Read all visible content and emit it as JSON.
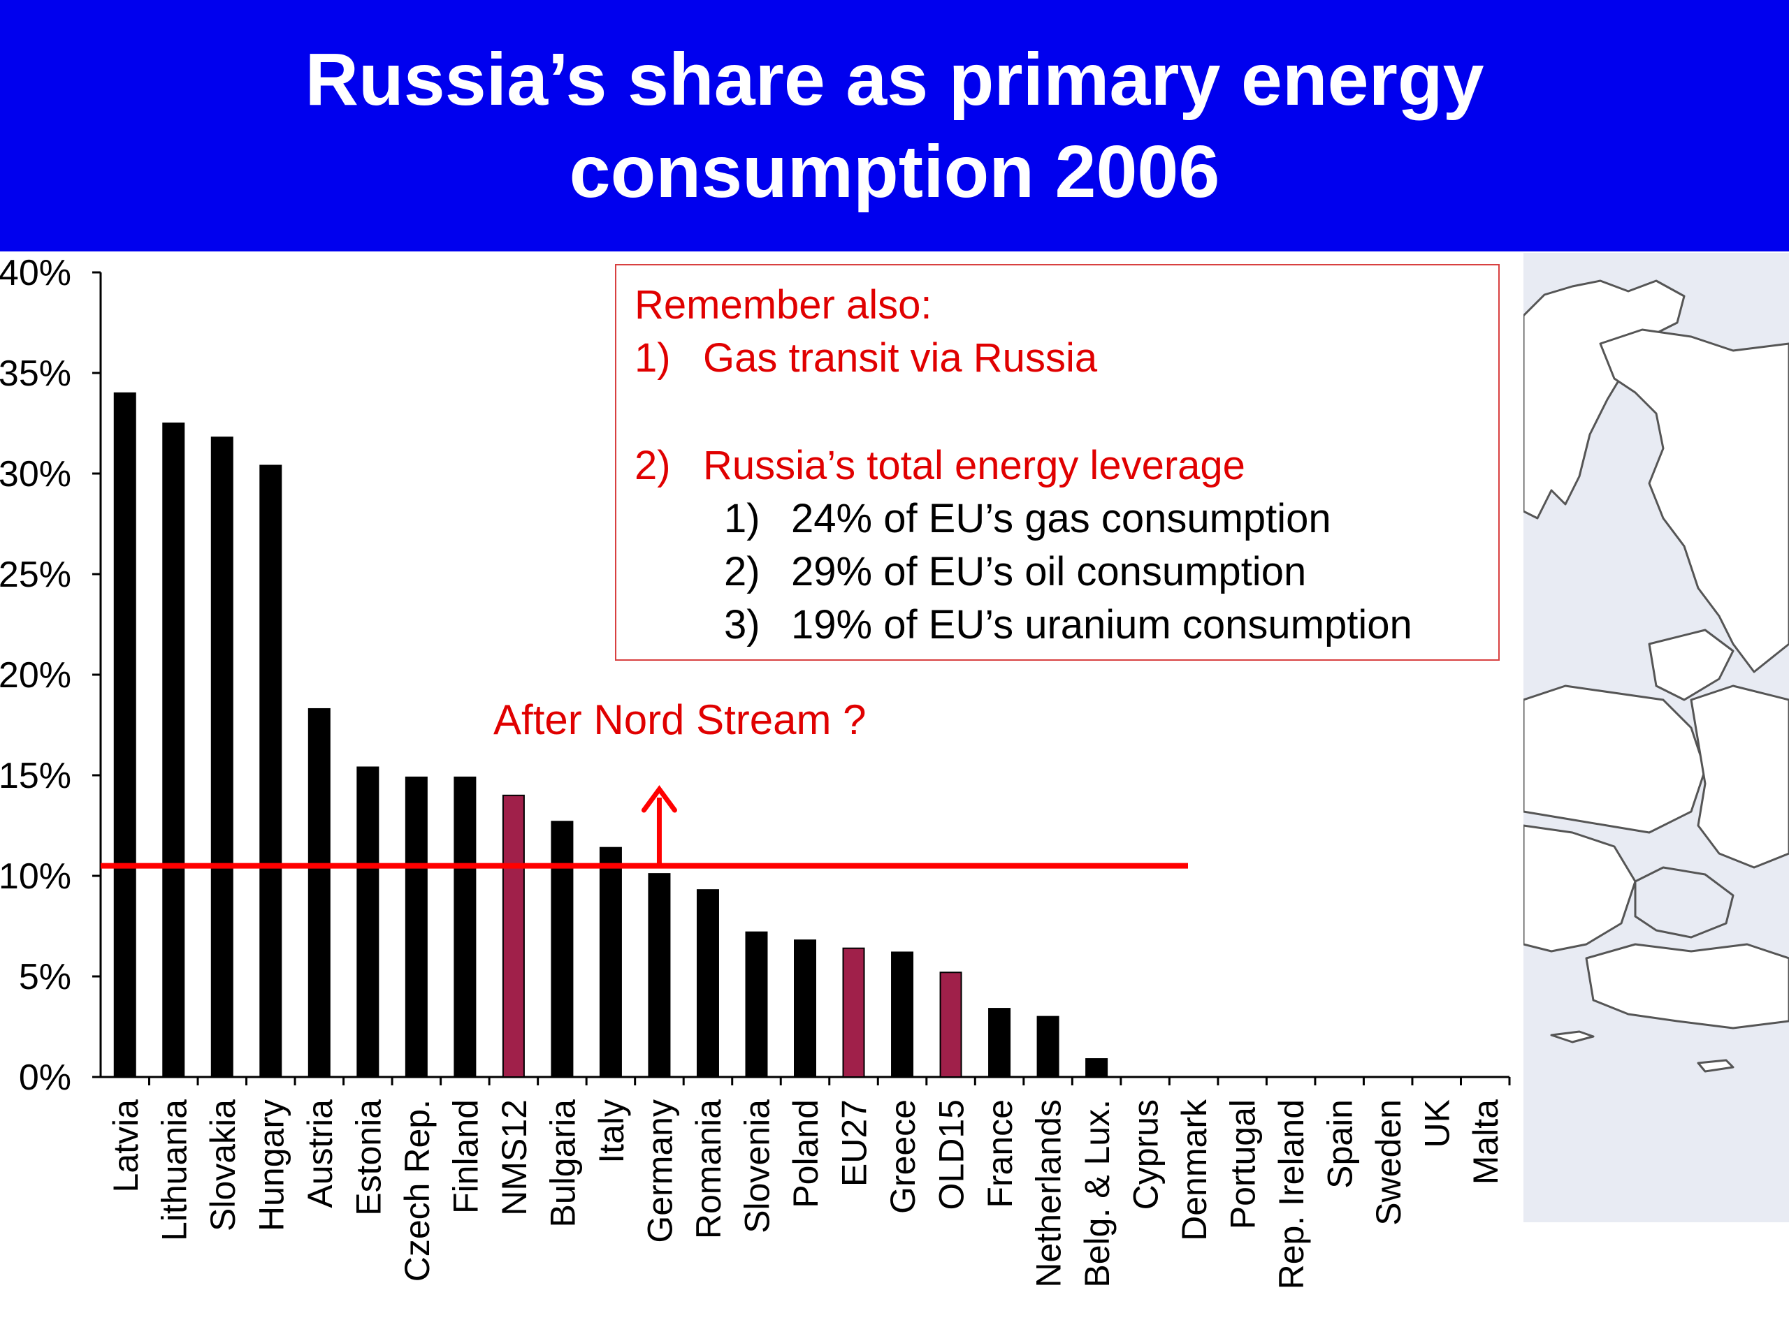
{
  "title": {
    "line1": "Russia’s share as primary energy",
    "line2": "consumption 2006"
  },
  "callout": {
    "heading": "Remember also:",
    "item1_num": "1)",
    "item1_text": "Gas transit via Russia",
    "item2_num": "2)",
    "item2_text": "Russia’s total energy leverage",
    "sub1_num": "1)",
    "sub1_text": "24% of EU’s gas consumption",
    "sub2_num": "2)",
    "sub2_text": "29% of EU’s oil consumption",
    "sub3_num": "3)",
    "sub3_text": "19% of EU’s uranium consumption"
  },
  "annotation": {
    "text": "After Nord Stream ?"
  },
  "colors": {
    "title_bg": "#0000ee",
    "bar": "#000000",
    "bar_highlight": "#a0204a",
    "reference_line": "#ff0000",
    "annotation_text": "#e00000",
    "map_bg": "#e8ebf3"
  },
  "chart_data": {
    "type": "bar",
    "categories": [
      "Latvia",
      "Lithuania",
      "Slovakia",
      "Hungary",
      "Austria",
      "Estonia",
      "Czech Rep.",
      "Finland",
      "NMS12",
      "Bulgaria",
      "Italy",
      "Germany",
      "Romania",
      "Slovenia",
      "Poland",
      "EU27",
      "Greece",
      "OLD15",
      "France",
      "Netherlands",
      "Belg. & Lux.",
      "Cyprus",
      "Denmark",
      "Portugal",
      "Rep. Ireland",
      "Spain",
      "Sweden",
      "UK",
      "Malta"
    ],
    "values": [
      34.0,
      32.5,
      31.8,
      30.4,
      18.3,
      15.4,
      14.9,
      14.9,
      14.0,
      12.7,
      11.4,
      10.1,
      9.3,
      7.2,
      6.8,
      6.4,
      6.2,
      5.2,
      3.4,
      3.0,
      0.9,
      0,
      0,
      0,
      0,
      0,
      0,
      0,
      0
    ],
    "highlighted": [
      "NMS12",
      "EU27",
      "OLD15"
    ],
    "ylim": [
      0,
      40
    ],
    "yticks": [
      "0%",
      "5%",
      "10%",
      "15%",
      "20%",
      "25%",
      "30%",
      "35%",
      "40%"
    ],
    "reference_line_value": 10.5,
    "arrow_at": "Germany",
    "grid": false
  }
}
